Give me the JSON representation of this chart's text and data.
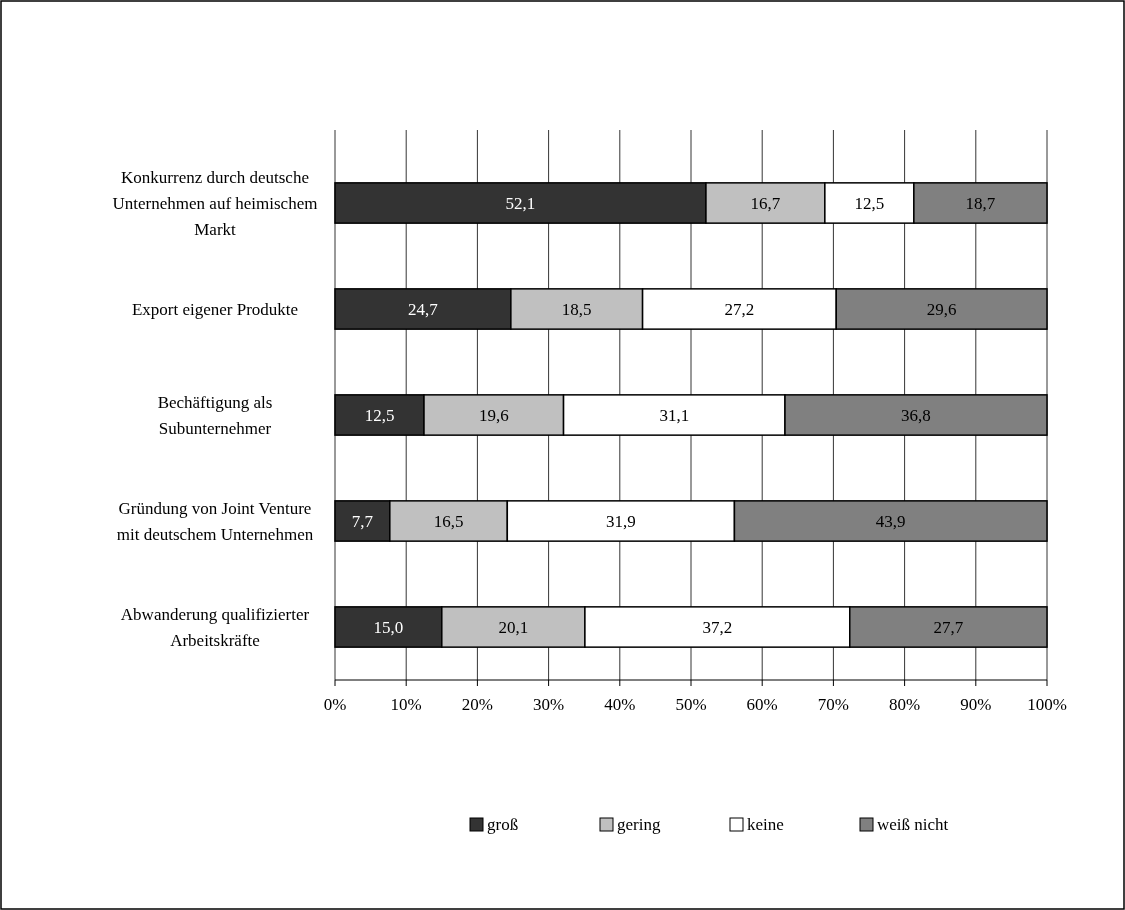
{
  "chart_data": {
    "type": "bar",
    "orientation": "horizontal",
    "stacked": true,
    "categories": [
      "Konkurrenz durch deutsche Unternehmen auf heimischem Markt",
      "Export eigener Produkte",
      "Bechäftigung als Subunternehmer",
      "Gründung von Joint Venture mit deutschem Unternehmen",
      "Abwanderung qualifizierter Arbeitskräfte"
    ],
    "series": [
      {
        "name": "groß",
        "color": "#333333",
        "values": [
          52.1,
          24.7,
          12.5,
          7.7,
          15.0
        ],
        "value_labels": [
          "52,1",
          "24,7",
          "12,5",
          "7,7",
          "15,0"
        ]
      },
      {
        "name": "gering",
        "color": "#c0c0c0",
        "values": [
          16.7,
          18.5,
          19.6,
          16.5,
          20.1
        ],
        "value_labels": [
          "16,7",
          "18,5",
          "19,6",
          "16,5",
          "20,1"
        ]
      },
      {
        "name": "keine",
        "color": "#ffffff",
        "values": [
          12.5,
          27.2,
          31.1,
          31.9,
          37.2
        ],
        "value_labels": [
          "12,5",
          "27,2",
          "31,1",
          "31,9",
          "37,2"
        ]
      },
      {
        "name": "weiß nicht",
        "color": "#808080",
        "values": [
          18.7,
          29.6,
          36.8,
          43.9,
          27.7
        ],
        "value_labels": [
          "18,7",
          "29,6",
          "36,8",
          "43,9",
          "27,7"
        ]
      }
    ],
    "xlim": [
      0,
      100
    ],
    "xticks": [
      {
        "value": 0,
        "label": "0%"
      },
      {
        "value": 10,
        "label": "10%"
      },
      {
        "value": 20,
        "label": "20%"
      },
      {
        "value": 30,
        "label": "30%"
      },
      {
        "value": 40,
        "label": "40%"
      },
      {
        "value": 50,
        "label": "50%"
      },
      {
        "value": 60,
        "label": "60%"
      },
      {
        "value": 70,
        "label": "70%"
      },
      {
        "value": 80,
        "label": "80%"
      },
      {
        "value": 90,
        "label": "90%"
      },
      {
        "value": 100,
        "label": "100%"
      }
    ],
    "grid": "x",
    "legend": "bottom"
  }
}
